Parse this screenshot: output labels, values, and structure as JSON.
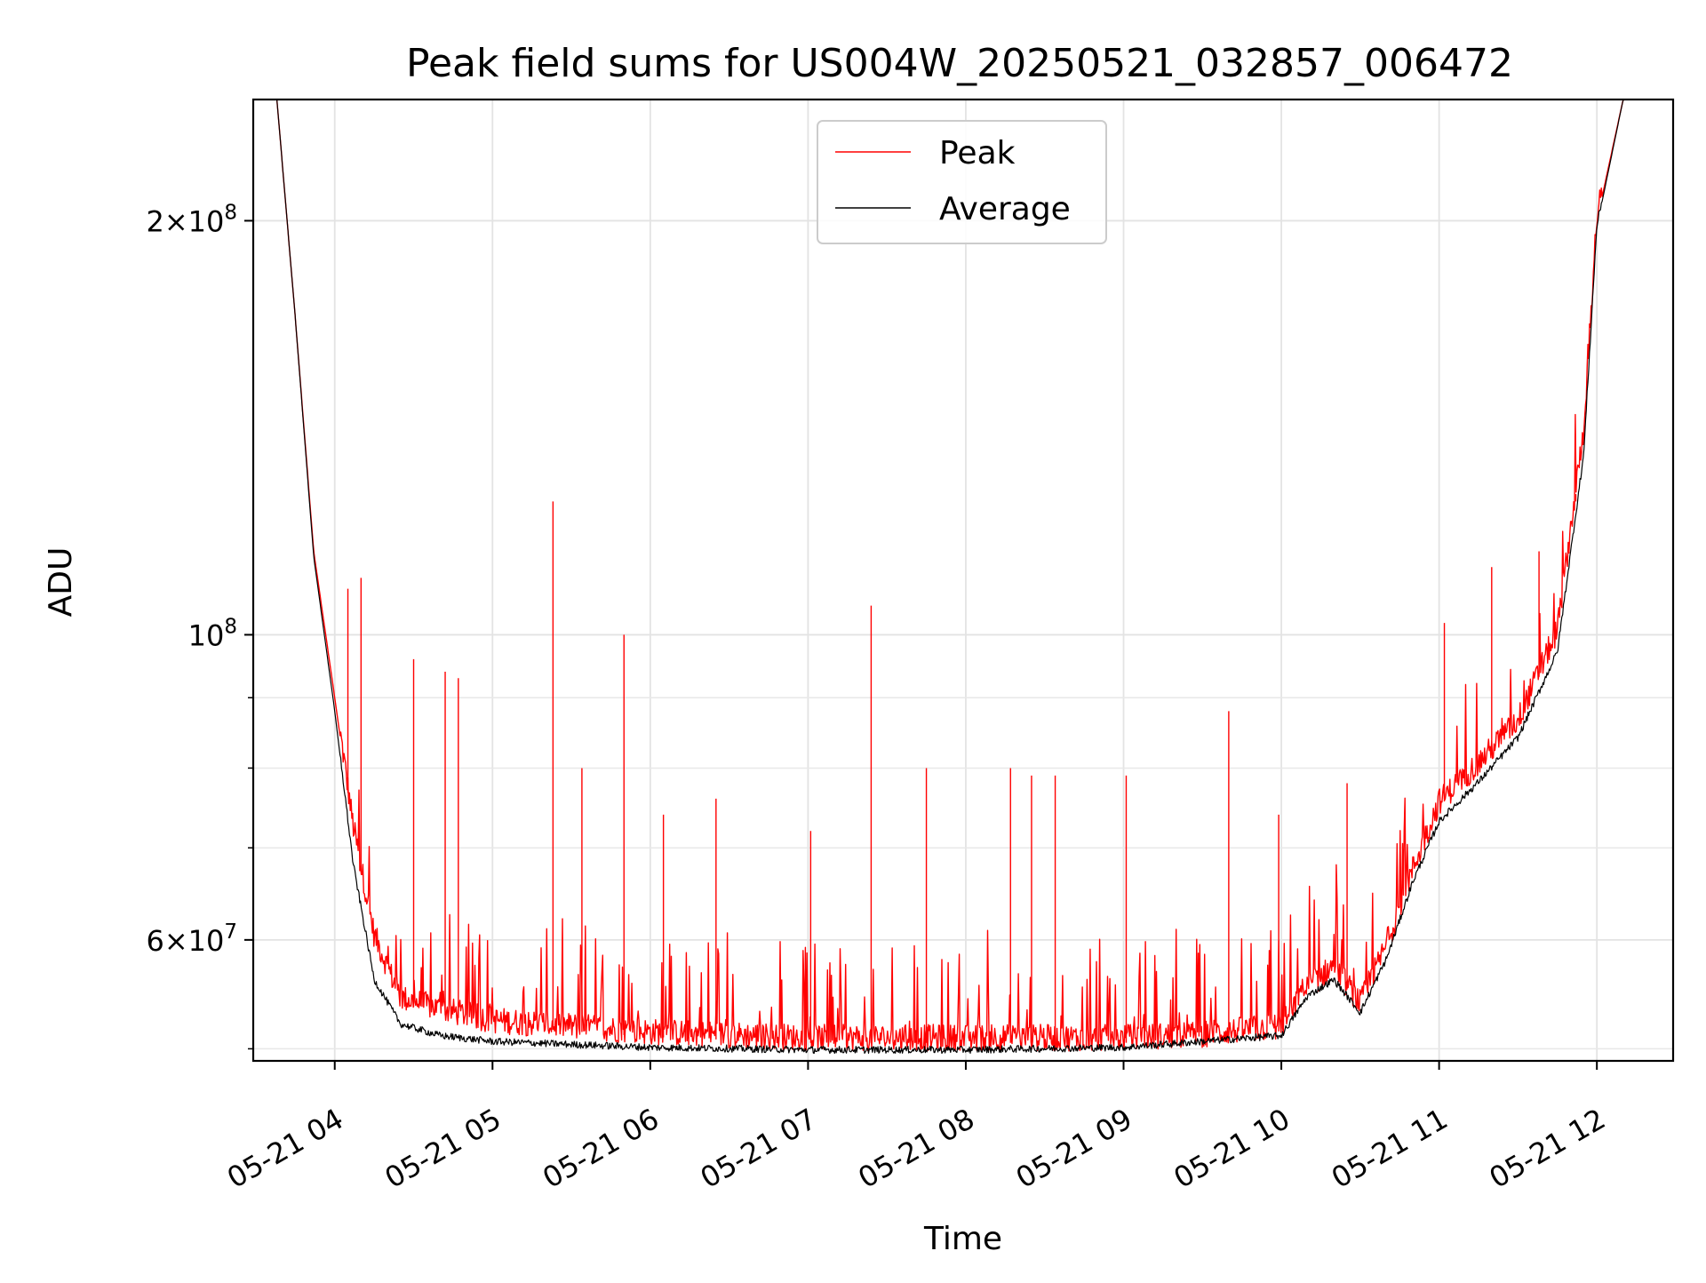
{
  "chart_data": {
    "type": "line",
    "title": "Peak field sums for US004W_20250521_032857_006472",
    "xlabel": "Time",
    "ylabel": "ADU",
    "x_scale": "time",
    "y_scale": "log",
    "xlim": [
      "2025-05-21 03:29",
      "2025-05-21 12:29"
    ],
    "ylim": [
      49000000,
      245000000
    ],
    "x_ticks": [
      {
        "value": "2025-05-21 04:00",
        "label": "05-21 04"
      },
      {
        "value": "2025-05-21 05:00",
        "label": "05-21 05"
      },
      {
        "value": "2025-05-21 06:00",
        "label": "05-21 06"
      },
      {
        "value": "2025-05-21 07:00",
        "label": "05-21 07"
      },
      {
        "value": "2025-05-21 08:00",
        "label": "05-21 08"
      },
      {
        "value": "2025-05-21 09:00",
        "label": "05-21 09"
      },
      {
        "value": "2025-05-21 10:00",
        "label": "05-21 10"
      },
      {
        "value": "2025-05-21 11:00",
        "label": "05-21 11"
      },
      {
        "value": "2025-05-21 12:00",
        "label": "05-21 12"
      }
    ],
    "y_ticks_major": [
      {
        "value": 200000000,
        "mantissa": "2",
        "exponent": "8"
      },
      {
        "value": 100000000,
        "mantissa": "",
        "exponent": "8"
      },
      {
        "value": 60000000,
        "mantissa": "6",
        "exponent": "7"
      }
    ],
    "y_tick_times_symbol": "×",
    "y_tick_base": "10",
    "y_ticks_minor": [
      50000000,
      70000000,
      80000000,
      90000000
    ],
    "grid": true,
    "legend": {
      "position": "upper-center"
    },
    "series": [
      {
        "name": "Peak",
        "color": "#ff0000",
        "baseline": [
          [
            "2025-05-21 03:29",
            245000000
          ],
          [
            "2025-05-21 03:38",
            245000000
          ],
          [
            "2025-05-21 03:45",
            170000000
          ],
          [
            "2025-05-21 03:52",
            115000000
          ],
          [
            "2025-05-21 04:00",
            90000000
          ],
          [
            "2025-05-21 04:07",
            72000000
          ],
          [
            "2025-05-21 04:15",
            60000000
          ],
          [
            "2025-05-21 04:25",
            54000000
          ],
          [
            "2025-05-21 04:40",
            53000000
          ],
          [
            "2025-05-21 05:00",
            52000000
          ],
          [
            "2025-05-21 06:00",
            51000000
          ],
          [
            "2025-05-21 07:00",
            50500000
          ],
          [
            "2025-05-21 08:00",
            50500000
          ],
          [
            "2025-05-21 09:00",
            50500000
          ],
          [
            "2025-05-21 09:30",
            50800000
          ],
          [
            "2025-05-21 10:00",
            51500000
          ],
          [
            "2025-05-21 10:10",
            55000000
          ],
          [
            "2025-05-21 10:20",
            57000000
          ],
          [
            "2025-05-21 10:30",
            53500000
          ],
          [
            "2025-05-21 10:40",
            59000000
          ],
          [
            "2025-05-21 10:50",
            67000000
          ],
          [
            "2025-05-21 11:00",
            75000000
          ],
          [
            "2025-05-21 11:15",
            80000000
          ],
          [
            "2025-05-21 11:30",
            86000000
          ],
          [
            "2025-05-21 11:45",
            100000000
          ],
          [
            "2025-05-21 11:55",
            140000000
          ],
          [
            "2025-05-21 12:00",
            200000000
          ],
          [
            "2025-05-21 12:10",
            245000000
          ],
          [
            "2025-05-21 12:29",
            245000000
          ]
        ],
        "spikes": [
          [
            "2025-05-21 04:05",
            108000000
          ],
          [
            "2025-05-21 04:10",
            110000000
          ],
          [
            "2025-05-21 04:30",
            96000000
          ],
          [
            "2025-05-21 04:42",
            94000000
          ],
          [
            "2025-05-21 04:47",
            93000000
          ],
          [
            "2025-05-21 05:23",
            125000000
          ],
          [
            "2025-05-21 05:34",
            80000000
          ],
          [
            "2025-05-21 05:50",
            100000000
          ],
          [
            "2025-05-21 06:05",
            74000000
          ],
          [
            "2025-05-21 06:25",
            76000000
          ],
          [
            "2025-05-21 07:01",
            72000000
          ],
          [
            "2025-05-21 07:24",
            105000000
          ],
          [
            "2025-05-21 07:45",
            80000000
          ],
          [
            "2025-05-21 08:17",
            80000000
          ],
          [
            "2025-05-21 08:25",
            79000000
          ],
          [
            "2025-05-21 08:34",
            79000000
          ],
          [
            "2025-05-21 09:01",
            79000000
          ],
          [
            "2025-05-21 09:40",
            88000000
          ],
          [
            "2025-05-21 09:59",
            74000000
          ],
          [
            "2025-05-21 10:25",
            78000000
          ],
          [
            "2025-05-21 11:02",
            102000000
          ],
          [
            "2025-05-21 11:20",
            112000000
          ],
          [
            "2025-05-21 11:38",
            115000000
          ],
          [
            "2025-05-21 11:52",
            125000000
          ]
        ]
      },
      {
        "name": "Average",
        "color": "#000000",
        "baseline": [
          [
            "2025-05-21 03:29",
            245000000
          ],
          [
            "2025-05-21 03:38",
            245000000
          ],
          [
            "2025-05-21 03:45",
            170000000
          ],
          [
            "2025-05-21 03:52",
            114000000
          ],
          [
            "2025-05-21 04:00",
            88000000
          ],
          [
            "2025-05-21 04:07",
            68000000
          ],
          [
            "2025-05-21 04:15",
            56000000
          ],
          [
            "2025-05-21 04:25",
            52000000
          ],
          [
            "2025-05-21 04:40",
            51000000
          ],
          [
            "2025-05-21 05:00",
            50500000
          ],
          [
            "2025-05-21 06:00",
            50000000
          ],
          [
            "2025-05-21 07:00",
            49800000
          ],
          [
            "2025-05-21 08:00",
            49800000
          ],
          [
            "2025-05-21 09:00",
            50000000
          ],
          [
            "2025-05-21 09:30",
            50500000
          ],
          [
            "2025-05-21 10:00",
            51000000
          ],
          [
            "2025-05-21 10:10",
            54500000
          ],
          [
            "2025-05-21 10:20",
            56000000
          ],
          [
            "2025-05-21 10:30",
            53000000
          ],
          [
            "2025-05-21 10:40",
            58000000
          ],
          [
            "2025-05-21 10:50",
            66000000
          ],
          [
            "2025-05-21 11:00",
            73000000
          ],
          [
            "2025-05-21 11:15",
            78000000
          ],
          [
            "2025-05-21 11:30",
            84000000
          ],
          [
            "2025-05-21 11:45",
            97000000
          ],
          [
            "2025-05-21 11:55",
            135000000
          ],
          [
            "2025-05-21 12:00",
            198000000
          ],
          [
            "2025-05-21 12:10",
            245000000
          ],
          [
            "2025-05-21 12:29",
            245000000
          ]
        ]
      }
    ]
  }
}
